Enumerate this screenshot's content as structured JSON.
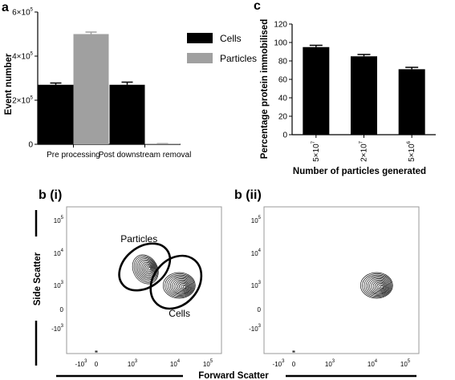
{
  "panels": {
    "a": "a",
    "c": "c",
    "bi": "b (i)",
    "bii": "b (ii)"
  },
  "chart_data": [
    {
      "id": "a",
      "type": "bar",
      "ylabel": "Event number",
      "ylim": [
        0,
        600000
      ],
      "yticks": [
        {
          "v": 0,
          "m": "0",
          "e": ""
        },
        {
          "v": 200000,
          "m": "2×10",
          "e": "5"
        },
        {
          "v": 400000,
          "m": "4×10",
          "e": "5"
        },
        {
          "v": 600000,
          "m": "6×10",
          "e": "5"
        }
      ],
      "categories": [
        "Pre processing",
        "Post downstream removal"
      ],
      "series": [
        {
          "name": "Cells",
          "color": "#000000",
          "values": [
            270000,
            270000
          ],
          "errors": [
            8000,
            12000
          ]
        },
        {
          "name": "Particles",
          "color": "#a0a0a0",
          "values": [
            500000,
            2000
          ],
          "errors": [
            9000,
            1000
          ]
        }
      ],
      "legend_position": "top-right"
    },
    {
      "id": "c",
      "type": "bar",
      "ylabel": "Percentage protein immobilised",
      "xlabel": "Number of particles generated",
      "ylim": [
        0,
        120
      ],
      "yticks": [
        0,
        20,
        40,
        60,
        80,
        100,
        120
      ],
      "categories": [
        {
          "m": "5×10",
          "e": "7"
        },
        {
          "m": "2×10",
          "e": "7"
        },
        {
          "m": "5×10",
          "e": "6"
        }
      ],
      "values": [
        95,
        85,
        71
      ],
      "errors": [
        2,
        2,
        2
      ],
      "color": "#000000"
    },
    {
      "id": "b_i",
      "type": "scatter",
      "subtype": "contour flow cytometry plot",
      "annotations": [
        "Particles",
        "Cells"
      ],
      "ticks_x": [
        {
          "m": "-10",
          "e": "3",
          "d": -3
        },
        {
          "m": "0",
          "e": "",
          "d": 0
        },
        {
          "m": "10",
          "e": "3",
          "d": 3
        },
        {
          "m": "10",
          "e": "4",
          "d": 4
        },
        {
          "m": "10",
          "e": "5",
          "d": 5
        }
      ],
      "ticks_y": [
        {
          "m": "-10",
          "e": "3",
          "d": -3
        },
        {
          "m": "0",
          "e": "",
          "d": 0
        },
        {
          "m": "10",
          "e": "3",
          "d": 3
        },
        {
          "m": "10",
          "e": "4",
          "d": 4
        },
        {
          "m": "10",
          "e": "5",
          "d": 5
        }
      ],
      "populations": [
        {
          "name": "Particles",
          "x": 3.4,
          "y": 3.5
        },
        {
          "name": "Cells",
          "x": 4.1,
          "y": 3.0
        }
      ]
    },
    {
      "id": "b_ii",
      "type": "scatter",
      "subtype": "contour flow cytometry plot",
      "ticks_x": [
        {
          "m": "-10",
          "e": "3",
          "d": -3
        },
        {
          "m": "0",
          "e": "",
          "d": 0
        },
        {
          "m": "10",
          "e": "3",
          "d": 3
        },
        {
          "m": "10",
          "e": "4",
          "d": 4
        },
        {
          "m": "10",
          "e": "5",
          "d": 5
        }
      ],
      "ticks_y": [
        {
          "m": "-10",
          "e": "3",
          "d": -3
        },
        {
          "m": "0",
          "e": "",
          "d": 0
        },
        {
          "m": "10",
          "e": "3",
          "d": 3
        },
        {
          "m": "10",
          "e": "4",
          "d": 4
        },
        {
          "m": "10",
          "e": "5",
          "d": 5
        }
      ],
      "populations": [
        {
          "name": "Cells",
          "x": 4.1,
          "y": 3.0
        }
      ]
    }
  ],
  "shared_axes": {
    "side_scatter": "Side Scatter",
    "forward_scatter": "Forward Scatter"
  }
}
